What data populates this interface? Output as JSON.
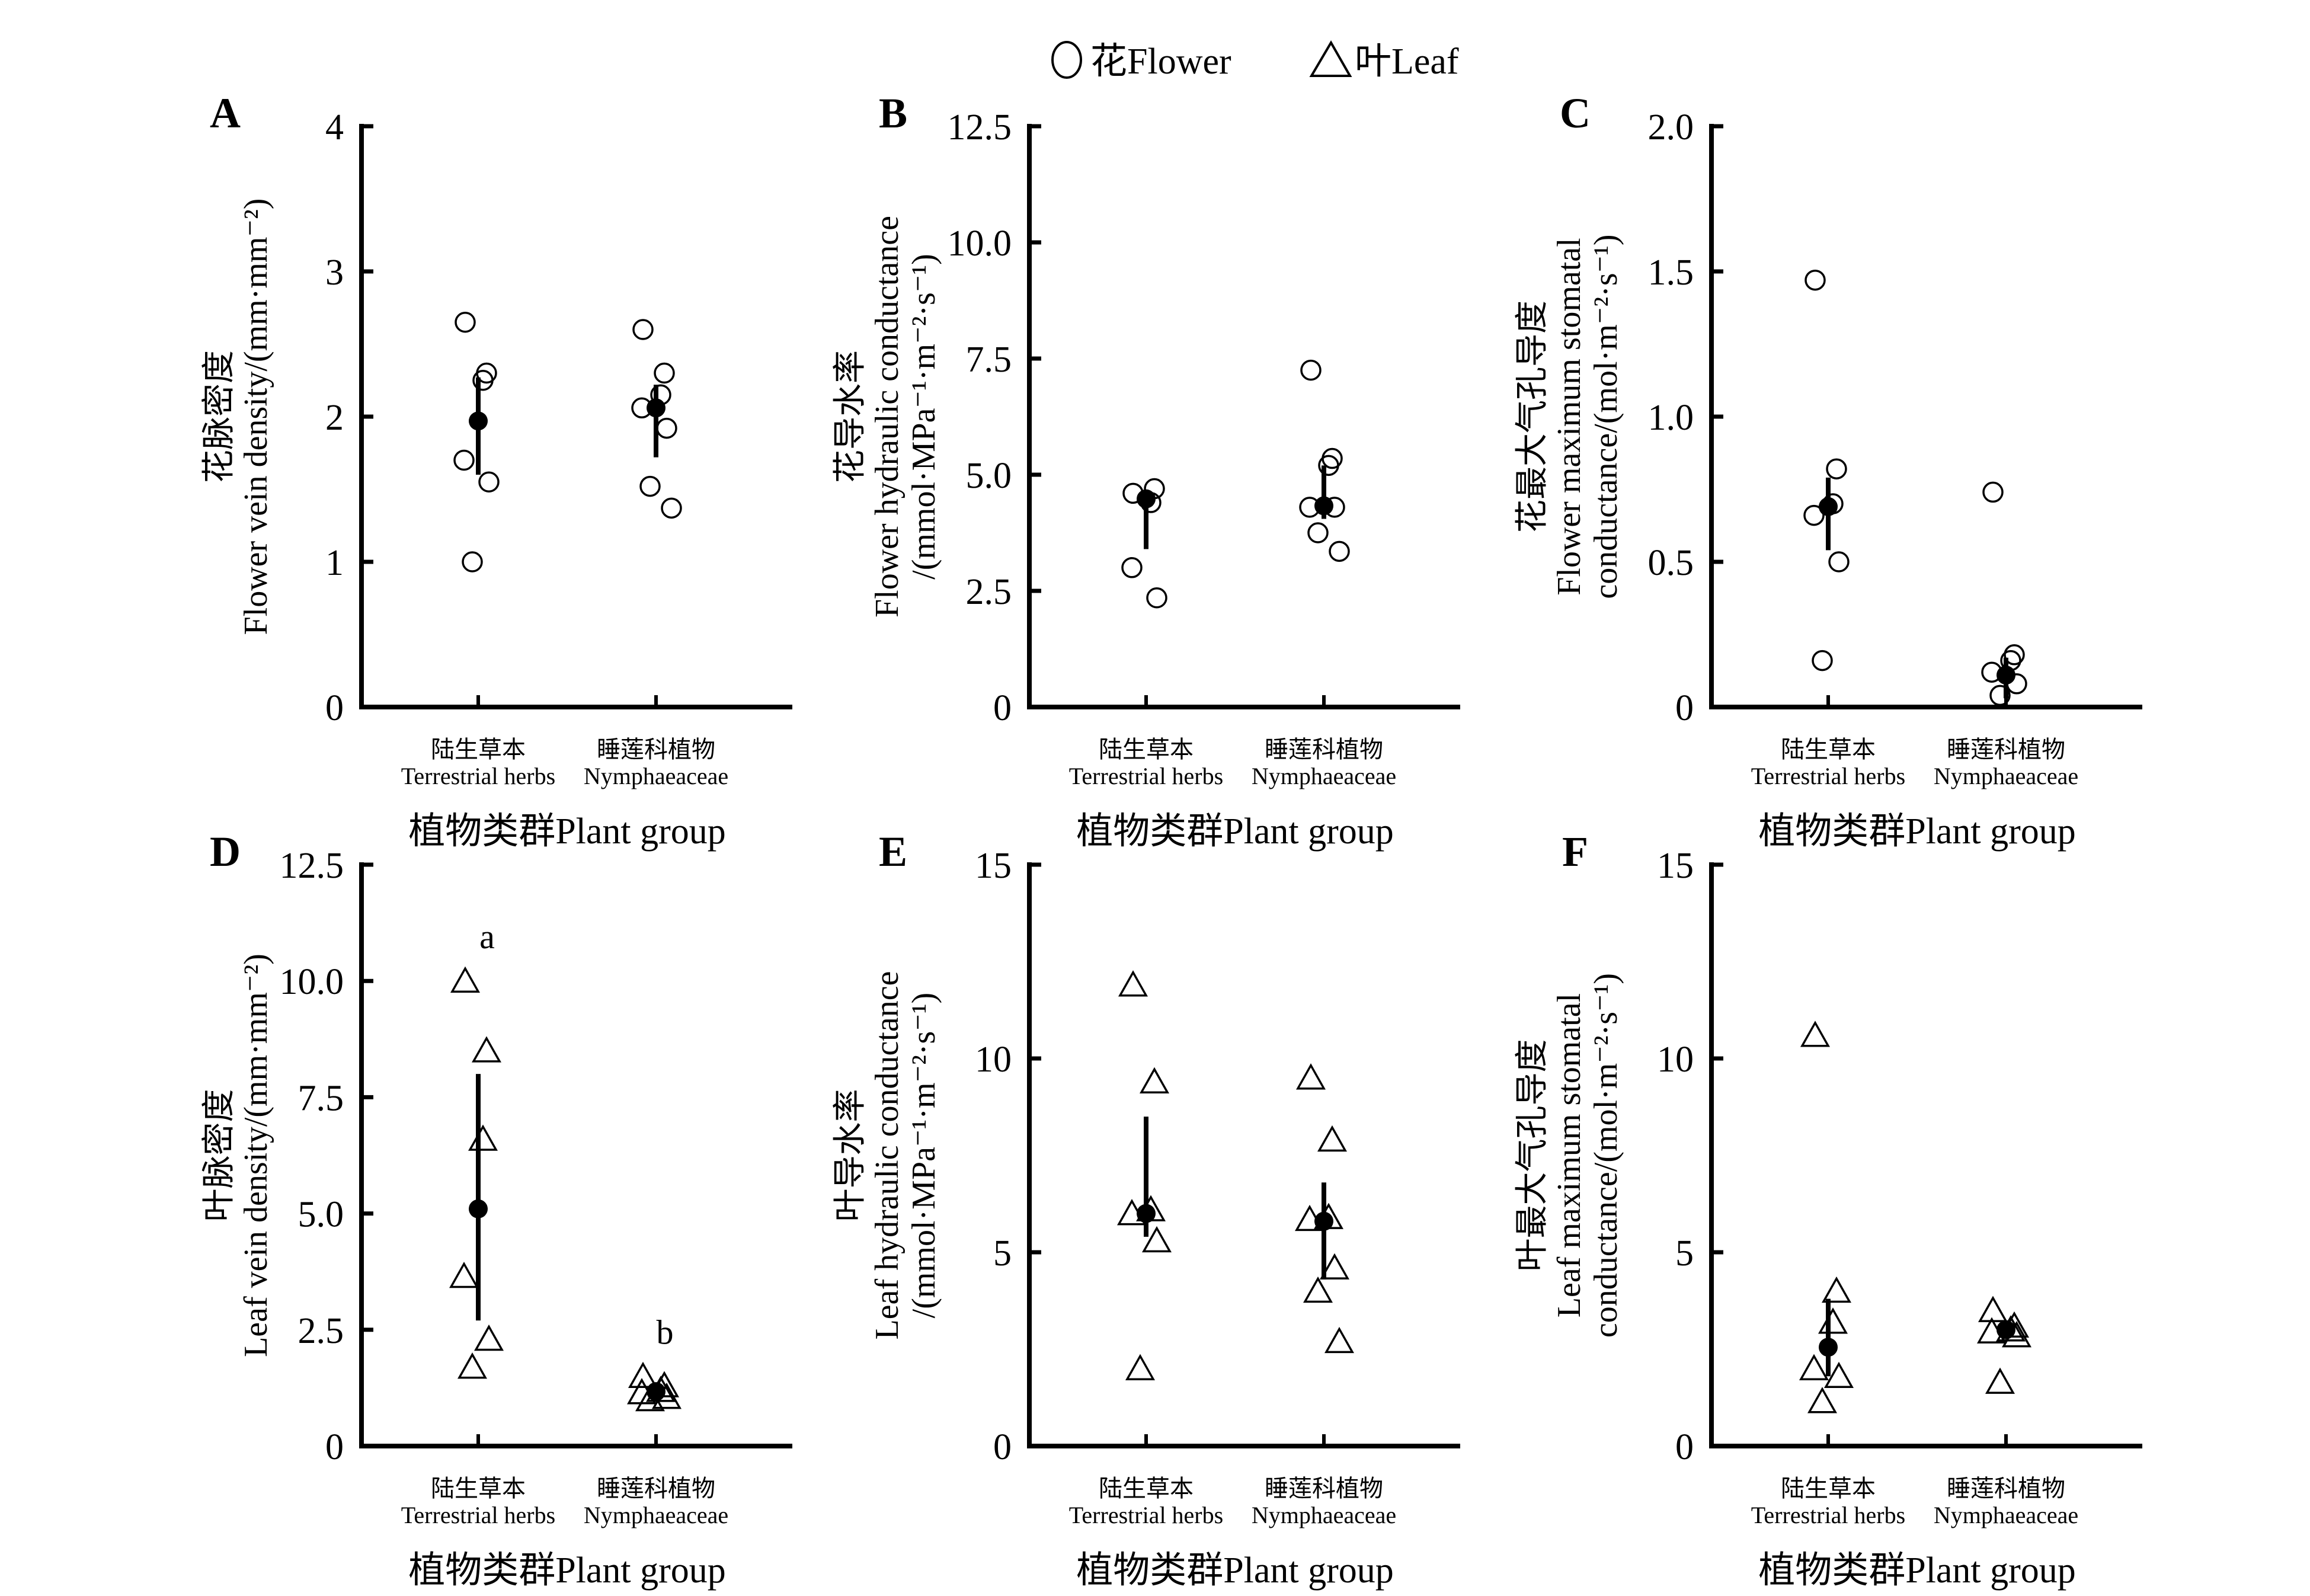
{
  "legend": {
    "items": [
      {
        "marker": "circle",
        "label": "花Flower"
      },
      {
        "marker": "triangle",
        "label": "叶Leaf"
      }
    ],
    "placement": "top-center"
  },
  "chart_data": [
    {
      "panel": "A",
      "type": "scatter",
      "title": "",
      "ylabel_lines": [
        "花脉密度",
        "Flower vein density/(mm·mm⁻²)"
      ],
      "xlabel": "植物类群Plant group",
      "categories": [
        {
          "cn": "陆生草本",
          "en": "Terrestrial herbs"
        },
        {
          "cn": "睡莲科植物",
          "en": "Nymphaeaceae"
        }
      ],
      "marker": "circle",
      "ylim": [
        0,
        4
      ],
      "yticks": [
        0,
        1,
        2,
        3,
        4
      ],
      "ytick_labels": [
        "0",
        "1",
        "2",
        "3",
        "4"
      ],
      "groups": [
        {
          "category": "Terrestrial herbs",
          "points": [
            2.65,
            2.3,
            2.25,
            1.7,
            1.55,
            1.0
          ],
          "mean": 1.97,
          "err_low": 1.6,
          "err_high": 2.27,
          "sig": ""
        },
        {
          "category": "Nymphaeaceae",
          "points": [
            2.6,
            2.3,
            2.15,
            2.06,
            1.92,
            1.52,
            1.37
          ],
          "mean": 2.06,
          "err_low": 1.72,
          "err_high": 2.22,
          "sig": ""
        }
      ]
    },
    {
      "panel": "B",
      "type": "scatter",
      "title": "",
      "ylabel_lines": [
        "花导水率",
        "Flower hydraulic conductance",
        "/(mmol·MPa⁻¹·m⁻²·s⁻¹)"
      ],
      "xlabel": "植物类群Plant group",
      "categories": [
        {
          "cn": "陆生草本",
          "en": "Terrestrial herbs"
        },
        {
          "cn": "睡莲科植物",
          "en": "Nymphaeaceae"
        }
      ],
      "marker": "circle",
      "ylim": [
        0,
        12.5
      ],
      "yticks": [
        0,
        2.5,
        5.0,
        7.5,
        10.0,
        12.5
      ],
      "ytick_labels": [
        "0",
        "2.5",
        "5.0",
        "7.5",
        "10.0",
        "12.5"
      ],
      "groups": [
        {
          "category": "Terrestrial herbs",
          "points": [
            4.6,
            4.7,
            4.4,
            3.0,
            2.35
          ],
          "mean": 4.48,
          "err_low": 3.4,
          "err_high": 4.55,
          "sig": ""
        },
        {
          "category": "Nymphaeaceae",
          "points": [
            7.25,
            5.35,
            5.2,
            4.3,
            4.3,
            3.75,
            3.35
          ],
          "mean": 4.33,
          "err_low": 4.05,
          "err_high": 5.2,
          "sig": ""
        }
      ]
    },
    {
      "panel": "C",
      "type": "scatter",
      "title": "",
      "ylabel_lines": [
        "花最大气孔导度",
        "Flower maximum stomatal",
        "conductance/(mol·m⁻²·s⁻¹)"
      ],
      "xlabel": "植物类群Plant group",
      "categories": [
        {
          "cn": "陆生草本",
          "en": "Terrestrial herbs"
        },
        {
          "cn": "睡莲科植物",
          "en": "Nymphaeaceae"
        }
      ],
      "marker": "circle",
      "ylim": [
        0,
        2.0
      ],
      "yticks": [
        0,
        0.5,
        1.0,
        1.5,
        2.0
      ],
      "ytick_labels": [
        "0",
        "0.5",
        "1.0",
        "1.5",
        "2.0"
      ],
      "groups": [
        {
          "category": "Terrestrial herbs",
          "points": [
            1.47,
            0.82,
            0.7,
            0.66,
            0.5,
            0.16
          ],
          "mean": 0.69,
          "err_low": 0.54,
          "err_high": 0.79,
          "sig": ""
        },
        {
          "category": "Nymphaeaceae",
          "points": [
            0.74,
            0.18,
            0.16,
            0.12,
            0.08,
            0.04
          ],
          "mean": 0.11,
          "err_low": 0.03,
          "err_high": 0.17,
          "sig": ""
        }
      ]
    },
    {
      "panel": "D",
      "type": "scatter",
      "title": "",
      "ylabel_lines": [
        "叶脉密度",
        "Leaf vein density/(mm·mm⁻²)"
      ],
      "xlabel": "植物类群Plant group",
      "categories": [
        {
          "cn": "陆生草本",
          "en": "Terrestrial herbs"
        },
        {
          "cn": "睡莲科植物",
          "en": "Nymphaeaceae"
        }
      ],
      "marker": "triangle",
      "ylim": [
        0,
        12.5
      ],
      "yticks": [
        0,
        2.5,
        5.0,
        7.5,
        10.0,
        12.5
      ],
      "ytick_labels": [
        "0",
        "2.5",
        "5.0",
        "7.5",
        "10.0",
        "12.5"
      ],
      "groups": [
        {
          "category": "Terrestrial herbs",
          "points": [
            10.0,
            8.5,
            6.6,
            3.65,
            2.3,
            1.7
          ],
          "mean": 5.1,
          "err_low": 2.7,
          "err_high": 8.0,
          "sig": "a"
        },
        {
          "category": "Nymphaeaceae",
          "points": [
            1.5,
            1.3,
            1.2,
            1.15,
            1.05,
            1.0
          ],
          "mean": 1.17,
          "err_low": 1.05,
          "err_high": 1.28,
          "sig": "b"
        }
      ]
    },
    {
      "panel": "E",
      "type": "scatter",
      "title": "",
      "ylabel_lines": [
        "叶导水率",
        "Leaf hydraulic conductance",
        "/(mmol·MPa⁻¹·m⁻²·s⁻¹)"
      ],
      "xlabel": "植物类群Plant group",
      "categories": [
        {
          "cn": "陆生草本",
          "en": "Terrestrial herbs"
        },
        {
          "cn": "睡莲科植物",
          "en": "Nymphaeaceae"
        }
      ],
      "marker": "triangle",
      "ylim": [
        0,
        15
      ],
      "yticks": [
        0,
        5,
        10,
        15
      ],
      "ytick_labels": [
        "0",
        "5",
        "10",
        "15"
      ],
      "groups": [
        {
          "category": "Terrestrial herbs",
          "points": [
            11.9,
            9.4,
            6.1,
            6.0,
            5.3,
            2.0
          ],
          "mean": 6.0,
          "err_low": 5.4,
          "err_high": 8.5,
          "sig": ""
        },
        {
          "category": "Nymphaeaceae",
          "points": [
            9.5,
            7.9,
            5.9,
            5.85,
            4.6,
            4.0,
            2.7
          ],
          "mean": 5.8,
          "err_low": 4.3,
          "err_high": 6.8,
          "sig": ""
        }
      ]
    },
    {
      "panel": "F",
      "type": "scatter",
      "title": "",
      "ylabel_lines": [
        "叶最大气孔导度",
        "Leaf maximum stomatal",
        "conductance/(mol·m⁻²·s⁻¹)"
      ],
      "xlabel": "植物类群Plant group",
      "categories": [
        {
          "cn": "陆生草本",
          "en": "Terrestrial herbs"
        },
        {
          "cn": "睡莲科植物",
          "en": "Nymphaeaceae"
        }
      ],
      "marker": "triangle",
      "ylim": [
        0,
        15
      ],
      "yticks": [
        0,
        5,
        10,
        15
      ],
      "ytick_labels": [
        "0",
        "5",
        "10",
        "15"
      ],
      "groups": [
        {
          "category": "Terrestrial herbs",
          "points": [
            10.6,
            4.0,
            3.2,
            2.0,
            1.8,
            1.15
          ],
          "mean": 2.55,
          "err_low": 1.8,
          "err_high": 3.8,
          "sig": ""
        },
        {
          "category": "Nymphaeaceae",
          "points": [
            3.5,
            3.1,
            3.0,
            2.95,
            2.85,
            1.65
          ],
          "mean": 3.0,
          "err_low": 2.8,
          "err_high": 3.2,
          "sig": ""
        }
      ]
    }
  ]
}
